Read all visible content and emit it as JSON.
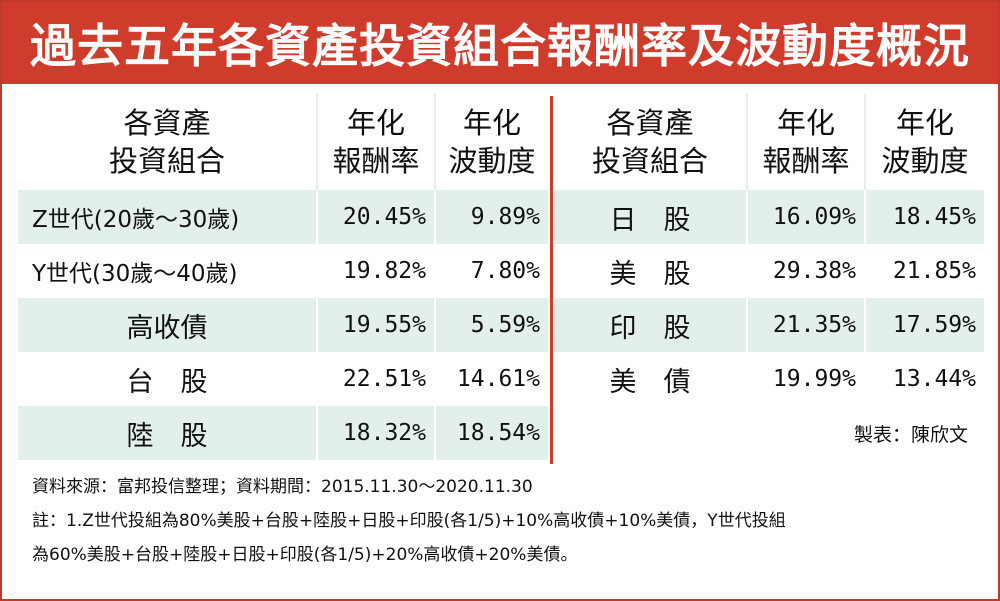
{
  "title": "過去五年各資產投資組合報酬率及波動度概況",
  "headers": {
    "col1": [
      "各資產",
      "投資組合"
    ],
    "col2": [
      "年化",
      "報酬率"
    ],
    "col3": [
      "年化",
      "波動度"
    ]
  },
  "left_rows": [
    {
      "name": "Z世代(20歲～30歲)",
      "return": "20.45%",
      "volatility": "9.89%"
    },
    {
      "name": "Y世代(30歲～40歲)",
      "return": "19.82%",
      "volatility": "7.80%"
    },
    {
      "name": "高收債",
      "return": "19.55%",
      "volatility": "5.59%"
    },
    {
      "name": "台　股",
      "return": "22.51%",
      "volatility": "14.61%"
    },
    {
      "name": "陸　股",
      "return": "18.32%",
      "volatility": "18.54%"
    }
  ],
  "right_rows": [
    {
      "name": "日　股",
      "return": "16.09%",
      "volatility": "18.45%"
    },
    {
      "name": "美　股",
      "return": "29.38%",
      "volatility": "21.85%"
    },
    {
      "name": "印　股",
      "return": "21.35%",
      "volatility": "17.59%"
    },
    {
      "name": "美　債",
      "return": "19.99%",
      "volatility": "13.44%"
    }
  ],
  "credit": "製表：陳欣文",
  "notes": [
    "資料來源：富邦投信整理；資料期間：2015.11.30～2020.11.30",
    "註：1.Z世代投組為80%美股+台股+陸股+日股+印股(各1/5)+10%高收債+10%美債，Y世代投組",
    "為60%美股+台股+陸股+日股+印股(各1/5)+20%高收債+20%美債。"
  ],
  "colors": {
    "accent": "#d03c2c",
    "shade": "#e3efe9"
  }
}
